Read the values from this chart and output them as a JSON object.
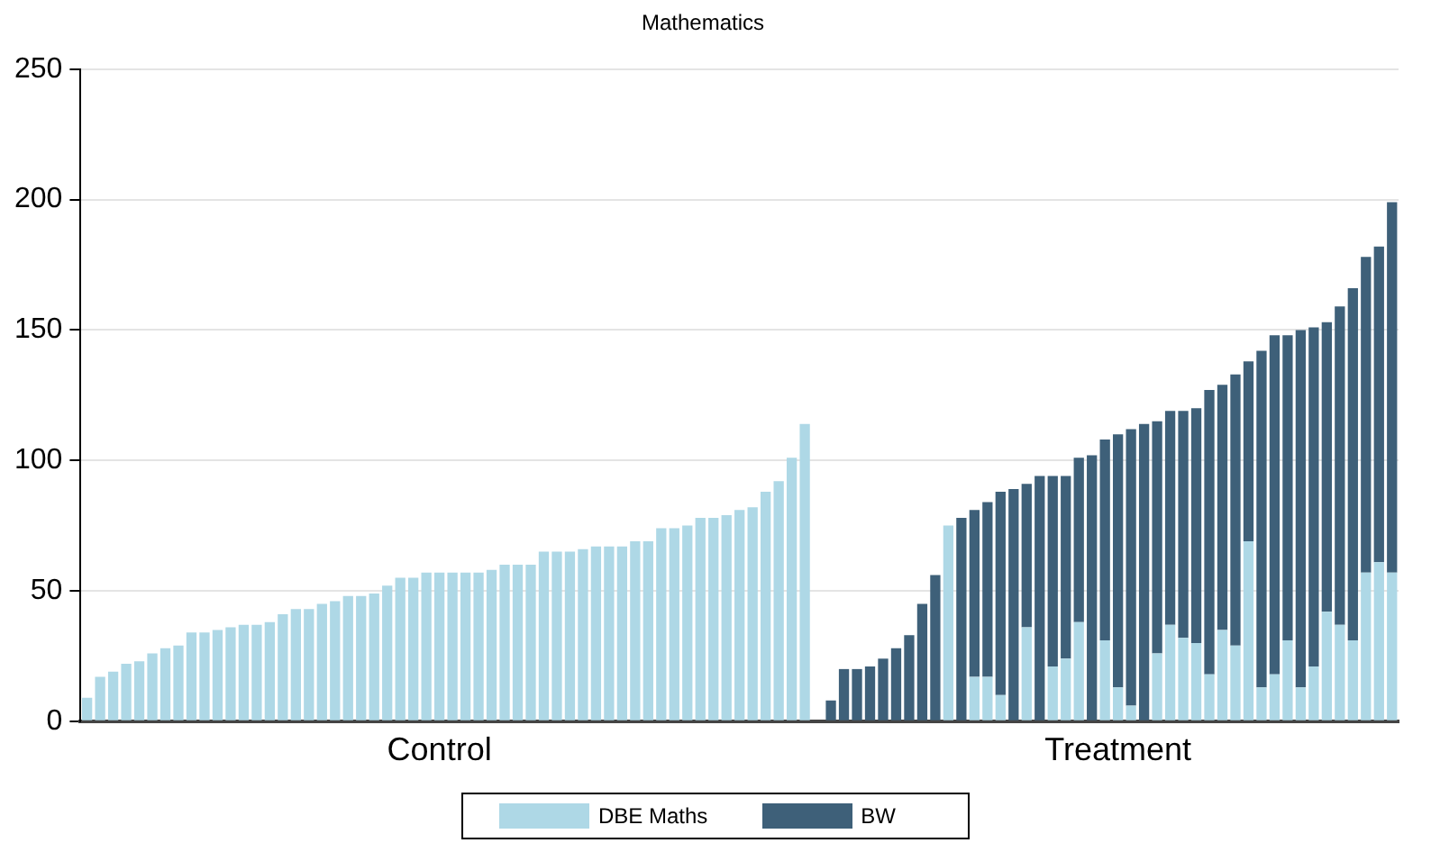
{
  "chart_data": {
    "type": "bar",
    "title": "Mathematics",
    "stacked": true,
    "categories": [
      null,
      null,
      null,
      null,
      null,
      null,
      null,
      null,
      null,
      null,
      null,
      null,
      null,
      null,
      null,
      null,
      null,
      null,
      null,
      null,
      null,
      null,
      null,
      null,
      null,
      null,
      null,
      "Control",
      null,
      null,
      null,
      null,
      null,
      null,
      null,
      null,
      null,
      null,
      null,
      null,
      null,
      null,
      null,
      null,
      null,
      null,
      null,
      null,
      null,
      null,
      null,
      null,
      null,
      null,
      null,
      null,
      null,
      null,
      null,
      null,
      null,
      null,
      null,
      null,
      null,
      null,
      null,
      null,
      null,
      null,
      null,
      null,
      null,
      null,
      null,
      null,
      null,
      null,
      null,
      "Treatment",
      null,
      null,
      null,
      null,
      null,
      null,
      null,
      null,
      null,
      null,
      null,
      null,
      null,
      null,
      null,
      null,
      null,
      null,
      null,
      null,
      null
    ],
    "series": [
      {
        "name": "DBE Maths",
        "color": "#aed8e6",
        "values": [
          9,
          17,
          19,
          22,
          23,
          26,
          28,
          29,
          34,
          34,
          35,
          36,
          37,
          37,
          38,
          41,
          43,
          43,
          45,
          46,
          48,
          48,
          49,
          52,
          55,
          55,
          57,
          57,
          57,
          57,
          57,
          58,
          60,
          60,
          60,
          65,
          65,
          65,
          66,
          67,
          67,
          67,
          69,
          69,
          74,
          74,
          75,
          78,
          78,
          79,
          81,
          82,
          88,
          92,
          101,
          114,
          null,
          0,
          0,
          0,
          0,
          0,
          0,
          0,
          0,
          0,
          75,
          0,
          17,
          17,
          10,
          0,
          36,
          0,
          21,
          24,
          38,
          0,
          31,
          13,
          6,
          0,
          26,
          37,
          32,
          30,
          18,
          35,
          29,
          69,
          13,
          18,
          31,
          13,
          21,
          42,
          37,
          31,
          57,
          61,
          57
        ]
      },
      {
        "name": "BW",
        "color": "#3e6079",
        "values": [
          null,
          null,
          null,
          null,
          null,
          null,
          null,
          null,
          null,
          null,
          null,
          null,
          null,
          null,
          null,
          null,
          null,
          null,
          null,
          null,
          null,
          null,
          null,
          null,
          null,
          null,
          null,
          null,
          null,
          null,
          null,
          null,
          null,
          null,
          null,
          null,
          null,
          null,
          null,
          null,
          null,
          null,
          null,
          null,
          null,
          null,
          null,
          null,
          null,
          null,
          null,
          null,
          null,
          null,
          null,
          null,
          null,
          8,
          20,
          20,
          21,
          24,
          28,
          33,
          45,
          56,
          0,
          78,
          64,
          67,
          78,
          89,
          55,
          94,
          73,
          70,
          63,
          102,
          77,
          97,
          106,
          114,
          89,
          82,
          87,
          90,
          109,
          94,
          104,
          69,
          129,
          130,
          117,
          137,
          130,
          111,
          122,
          135,
          121,
          121,
          142
        ]
      }
    ],
    "ylim": [
      0,
      250
    ],
    "yticks": [
      0,
      50,
      100,
      150,
      200,
      250
    ],
    "grid": "y",
    "legend": "bottom"
  }
}
